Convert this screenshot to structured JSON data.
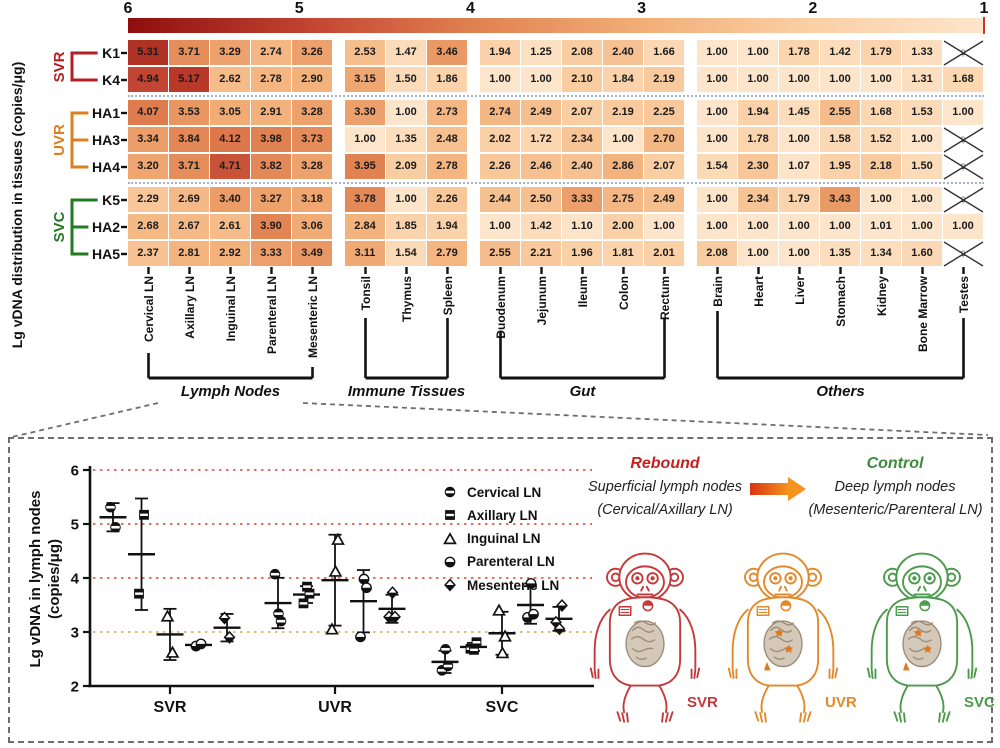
{
  "figure": {
    "heatmap_y_title": "Lg vDNA distribution in tissues (copies/μg)"
  },
  "chart_data": [
    {
      "type": "heatmap",
      "ylabel": "Lg vDNA distribution in tissues (copies/μg)",
      "colorbar": {
        "ticks": [
          "6",
          "5",
          "4",
          "3",
          "2",
          "1"
        ],
        "value_range": [
          1,
          6
        ]
      },
      "crossed_symbol": "♀",
      "row_groups": [
        {
          "name": "SVR",
          "color": "#b51f24",
          "rows": [
            "K1",
            "K4"
          ]
        },
        {
          "name": "UVR",
          "color": "#db7f1f",
          "rows": [
            "HA1",
            "HA3",
            "HA4"
          ]
        },
        {
          "name": "SVC",
          "color": "#237a23",
          "rows": [
            "K5",
            "HA2",
            "HA5"
          ]
        }
      ],
      "column_groups": [
        {
          "label": "Lymph Nodes",
          "columns": [
            "Cervical LN",
            "Axillary LN",
            "Inguinal LN",
            "Parenteral LN",
            "Mesenteric LN"
          ]
        },
        {
          "label": "Immune Tissues",
          "columns": [
            "Tonsil",
            "Thymus",
            "Spleen"
          ]
        },
        {
          "label": "Gut",
          "columns": [
            "Duodenum",
            "Jejunum",
            "Ileum",
            "Colon",
            "Rectum"
          ]
        },
        {
          "label": "Others",
          "columns": [
            "Brain",
            "Heart",
            "Liver",
            "Stomach",
            "Kidney",
            "Bone Marrow",
            "Testes"
          ]
        }
      ],
      "rows": [
        {
          "label": "K1",
          "values": [
            "5.31",
            "3.71",
            "3.29",
            "2.74",
            "3.26",
            "2.53",
            "1.47",
            "3.46",
            "1.94",
            "1.25",
            "2.08",
            "2.40",
            "1.66",
            "1.00",
            "1.00",
            "1.78",
            "1.42",
            "1.79",
            "1.33",
            "x"
          ]
        },
        {
          "label": "K4",
          "values": [
            "4.94",
            "5.17",
            "2.62",
            "2.78",
            "2.90",
            "3.15",
            "1.50",
            "1.86",
            "1.00",
            "1.00",
            "2.10",
            "1.84",
            "2.19",
            "1.00",
            "1.00",
            "1.00",
            "1.00",
            "1.00",
            "1.31",
            "1.68"
          ]
        },
        {
          "label": "HA1",
          "values": [
            "4.07",
            "3.53",
            "3.05",
            "2.91",
            "3.28",
            "3.30",
            "1.00",
            "2.73",
            "2.74",
            "2.49",
            "2.07",
            "2.19",
            "2.25",
            "1.00",
            "1.94",
            "1.45",
            "2.55",
            "1.68",
            "1.53",
            "1.00"
          ]
        },
        {
          "label": "HA3",
          "values": [
            "3.34",
            "3.84",
            "4.12",
            "3.98",
            "3.73",
            "1.00",
            "1.35",
            "2.48",
            "2.02",
            "1.72",
            "2.34",
            "1.00",
            "2.70",
            "1.00",
            "1.78",
            "1.00",
            "1.58",
            "1.52",
            "1.00",
            "x"
          ]
        },
        {
          "label": "HA4",
          "values": [
            "3.20",
            "3.71",
            "4.71",
            "3.82",
            "3.28",
            "3.95",
            "2.09",
            "2.78",
            "2.26",
            "2.46",
            "2.40",
            "2.86",
            "2.07",
            "1.54",
            "2.30",
            "1.07",
            "1.95",
            "2.18",
            "1.50",
            "x"
          ]
        },
        {
          "label": "K5",
          "values": [
            "2.29",
            "2.69",
            "3.40",
            "3.27",
            "3.18",
            "3.78",
            "1.00",
            "2.26",
            "2.44",
            "2.50",
            "3.33",
            "2.75",
            "2.49",
            "1.00",
            "2.34",
            "1.79",
            "3.43",
            "1.00",
            "1.00",
            "x"
          ]
        },
        {
          "label": "HA2",
          "values": [
            "2.68",
            "2.67",
            "2.61",
            "3.90",
            "3.06",
            "2.84",
            "1.85",
            "1.94",
            "1.00",
            "1.42",
            "1.10",
            "2.00",
            "1.00",
            "1.00",
            "1.00",
            "1.00",
            "1.00",
            "1.01",
            "1.00",
            "1.00"
          ]
        },
        {
          "label": "HA5",
          "values": [
            "2.37",
            "2.81",
            "2.92",
            "3.33",
            "3.49",
            "3.11",
            "1.54",
            "2.79",
            "2.55",
            "2.21",
            "1.96",
            "1.81",
            "2.01",
            "2.08",
            "1.00",
            "1.00",
            "1.35",
            "1.34",
            "1.60",
            "x"
          ]
        }
      ]
    },
    {
      "type": "scatter",
      "ylabel_line1": "Lg vDNA in lymph nodes",
      "ylabel_line2": "(copies/μg)",
      "ylim": [
        2,
        6
      ],
      "yticks": [
        2,
        3,
        4,
        5,
        6
      ],
      "gridlines": [
        3,
        4,
        5,
        6
      ],
      "groups": [
        "SVR",
        "UVR",
        "SVC"
      ],
      "series": [
        {
          "name": "Cervical LN",
          "marker": "circle-stripe",
          "values": {
            "SVR": [
              5.31,
              4.94
            ],
            "UVR": [
              4.07,
              3.34,
              3.2
            ],
            "SVC": [
              2.29,
              2.68,
              2.37
            ]
          }
        },
        {
          "name": "Axillary  LN",
          "marker": "square-stripe",
          "values": {
            "SVR": [
              3.71,
              5.17
            ],
            "UVR": [
              3.53,
              3.84,
              3.71
            ],
            "SVC": [
              2.69,
              2.67,
              2.81
            ]
          }
        },
        {
          "name": "Inguinal LN",
          "marker": "triangle",
          "values": {
            "SVR": [
              3.29,
              2.62
            ],
            "UVR": [
              3.05,
              4.12,
              4.71
            ],
            "SVC": [
              3.4,
              2.61,
              2.92
            ]
          }
        },
        {
          "name": "Parenteral  LN",
          "marker": "circle-half",
          "values": {
            "SVR": [
              2.74,
              2.78
            ],
            "UVR": [
              2.91,
              3.98,
              3.82
            ],
            "SVC": [
              3.27,
              3.9,
              3.33
            ]
          }
        },
        {
          "name": "Mesenteric LN",
          "marker": "diamond-half",
          "values": {
            "SVR": [
              3.26,
              2.9
            ],
            "UVR": [
              3.28,
              3.73,
              3.28
            ],
            "SVC": [
              3.18,
              3.06,
              3.49
            ]
          }
        }
      ]
    }
  ],
  "annotation": {
    "rebound_title": "Rebound",
    "rebound_title_color": "#c42020",
    "rebound_line1": "Superficial lymph nodes",
    "rebound_line2": "(Cervical/Axillary LN)",
    "control_title": "Control",
    "control_title_color": "#3d8b3d",
    "control_line1": "Deep lymph nodes",
    "control_line2": "(Mesenteric/Parenteral LN)",
    "monkeys": [
      {
        "label": "SVR",
        "color": "#c43a3a",
        "gut_marks": false
      },
      {
        "label": "UVR",
        "color": "#e2892b",
        "gut_marks": true
      },
      {
        "label": "SVC",
        "color": "#4c9a4c",
        "gut_marks": true
      }
    ]
  }
}
